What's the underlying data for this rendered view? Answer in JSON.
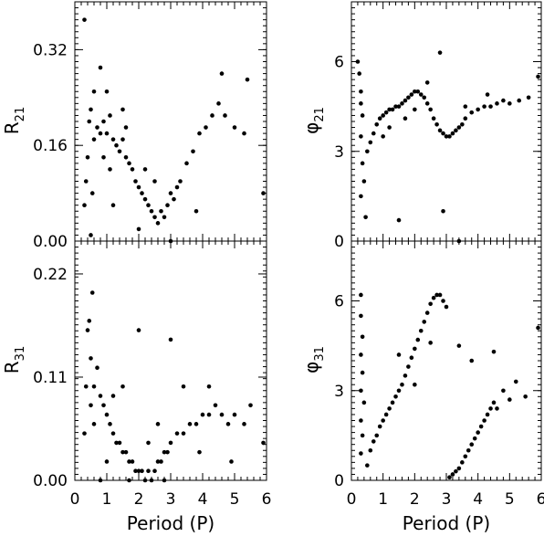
{
  "chart_data": [
    {
      "type": "scatter",
      "id": "r21",
      "ylabel": {
        "main": "R",
        "sub": "21"
      },
      "xlabel": "",
      "xlim": [
        0,
        6
      ],
      "ylim": [
        0,
        0.4
      ],
      "yticks": [
        "0.00",
        "0.16",
        "0.32"
      ],
      "ytick_values": [
        0.0,
        0.16,
        0.32
      ],
      "xticks": [],
      "show_xticklabels": false,
      "series": [
        {
          "values": [
            [
              0.3,
              0.06
            ],
            [
              0.35,
              0.1
            ],
            [
              0.4,
              0.14
            ],
            [
              0.45,
              0.2
            ],
            [
              0.5,
              0.22
            ],
            [
              0.55,
              0.08
            ],
            [
              0.6,
              0.17
            ],
            [
              0.7,
              0.19
            ],
            [
              0.8,
              0.18
            ],
            [
              0.9,
              0.2
            ],
            [
              1.0,
              0.18
            ],
            [
              1.1,
              0.21
            ],
            [
              1.2,
              0.17
            ],
            [
              1.3,
              0.16
            ],
            [
              1.4,
              0.15
            ],
            [
              1.5,
              0.17
            ],
            [
              1.6,
              0.14
            ],
            [
              1.7,
              0.13
            ],
            [
              1.8,
              0.12
            ],
            [
              1.9,
              0.1
            ],
            [
              2.0,
              0.09
            ],
            [
              2.1,
              0.08
            ],
            [
              2.2,
              0.07
            ],
            [
              2.3,
              0.06
            ],
            [
              2.4,
              0.05
            ],
            [
              2.5,
              0.04
            ],
            [
              2.6,
              0.03
            ],
            [
              2.7,
              0.05
            ],
            [
              2.8,
              0.04
            ],
            [
              2.9,
              0.06
            ],
            [
              3.0,
              0.08
            ],
            [
              3.1,
              0.07
            ],
            [
              3.2,
              0.09
            ],
            [
              3.3,
              0.1
            ],
            [
              3.5,
              0.13
            ],
            [
              3.7,
              0.15
            ],
            [
              3.9,
              0.18
            ],
            [
              4.1,
              0.19
            ],
            [
              4.3,
              0.21
            ],
            [
              4.5,
              0.23
            ],
            [
              4.7,
              0.21
            ],
            [
              5.0,
              0.19
            ],
            [
              5.3,
              0.18
            ],
            [
              0.3,
              0.37
            ],
            [
              0.8,
              0.29
            ],
            [
              1.0,
              0.25
            ],
            [
              1.5,
              0.22
            ],
            [
              2.2,
              0.12
            ],
            [
              4.6,
              0.28
            ],
            [
              5.4,
              0.27
            ],
            [
              0.5,
              0.01
            ],
            [
              1.2,
              0.06
            ],
            [
              2.0,
              0.02
            ],
            [
              3.0,
              0.0
            ],
            [
              0.6,
              0.25
            ],
            [
              0.9,
              0.14
            ],
            [
              1.1,
              0.12
            ],
            [
              1.6,
              0.19
            ],
            [
              2.5,
              0.1
            ],
            [
              3.8,
              0.05
            ],
            [
              5.9,
              0.08
            ]
          ]
        }
      ]
    },
    {
      "type": "scatter",
      "id": "phi21",
      "ylabel": {
        "main": "φ",
        "sub": "21"
      },
      "xlabel": "",
      "xlim": [
        0,
        6
      ],
      "ylim": [
        0,
        8
      ],
      "yticks": [
        "0",
        "3",
        "6"
      ],
      "ytick_values": [
        0,
        3,
        6
      ],
      "xticks": [],
      "show_xticklabels": false,
      "series": [
        {
          "values": [
            [
              0.2,
              6.0
            ],
            [
              0.25,
              5.6
            ],
            [
              0.3,
              5.0
            ],
            [
              0.3,
              4.6
            ],
            [
              0.35,
              4.2
            ],
            [
              0.3,
              3.5
            ],
            [
              0.35,
              2.6
            ],
            [
              0.4,
              2.0
            ],
            [
              0.3,
              1.5
            ],
            [
              0.45,
              0.8
            ],
            [
              0.5,
              3.0
            ],
            [
              0.6,
              3.3
            ],
            [
              0.7,
              3.6
            ],
            [
              0.8,
              3.9
            ],
            [
              0.9,
              4.1
            ],
            [
              1.0,
              4.2
            ],
            [
              1.1,
              4.3
            ],
            [
              1.2,
              4.4
            ],
            [
              1.3,
              4.4
            ],
            [
              1.4,
              4.5
            ],
            [
              1.5,
              4.5
            ],
            [
              1.6,
              4.6
            ],
            [
              1.7,
              4.7
            ],
            [
              1.8,
              4.8
            ],
            [
              1.9,
              4.9
            ],
            [
              2.0,
              5.0
            ],
            [
              2.1,
              5.0
            ],
            [
              2.2,
              4.9
            ],
            [
              2.3,
              4.8
            ],
            [
              2.4,
              4.6
            ],
            [
              2.5,
              4.4
            ],
            [
              2.6,
              4.1
            ],
            [
              2.7,
              3.9
            ],
            [
              2.8,
              3.7
            ],
            [
              2.9,
              3.6
            ],
            [
              3.0,
              3.5
            ],
            [
              3.1,
              3.5
            ],
            [
              3.2,
              3.6
            ],
            [
              3.3,
              3.7
            ],
            [
              3.4,
              3.8
            ],
            [
              3.5,
              3.9
            ],
            [
              3.6,
              4.1
            ],
            [
              3.8,
              4.3
            ],
            [
              4.0,
              4.4
            ],
            [
              4.2,
              4.5
            ],
            [
              4.4,
              4.5
            ],
            [
              4.6,
              4.6
            ],
            [
              4.8,
              4.7
            ],
            [
              5.0,
              4.6
            ],
            [
              5.3,
              4.7
            ],
            [
              5.6,
              4.8
            ],
            [
              5.9,
              5.5
            ],
            [
              2.8,
              6.3
            ],
            [
              1.5,
              0.7
            ],
            [
              2.9,
              1.0
            ],
            [
              3.4,
              0.0
            ],
            [
              1.0,
              3.5
            ],
            [
              1.2,
              3.8
            ],
            [
              2.4,
              5.3
            ],
            [
              2.0,
              4.4
            ],
            [
              1.7,
              4.1
            ],
            [
              3.6,
              4.5
            ],
            [
              4.3,
              4.9
            ]
          ]
        }
      ]
    },
    {
      "type": "scatter",
      "id": "r31",
      "ylabel": {
        "main": "R",
        "sub": "31"
      },
      "xlabel": "Period (P)",
      "xlim": [
        0,
        6
      ],
      "ylim": [
        0,
        0.255
      ],
      "yticks": [
        "0.00",
        "0.11",
        "0.22"
      ],
      "ytick_values": [
        0.0,
        0.11,
        0.22
      ],
      "xticks": [
        "0",
        "1",
        "2",
        "3",
        "4",
        "5",
        "6"
      ],
      "xtick_values": [
        0,
        1,
        2,
        3,
        4,
        5,
        6
      ],
      "show_xticklabels": true,
      "series": [
        {
          "values": [
            [
              0.3,
              0.05
            ],
            [
              0.35,
              0.1
            ],
            [
              0.4,
              0.16
            ],
            [
              0.45,
              0.17
            ],
            [
              0.5,
              0.13
            ],
            [
              0.5,
              0.08
            ],
            [
              0.55,
              0.2
            ],
            [
              0.6,
              0.1
            ],
            [
              0.7,
              0.12
            ],
            [
              0.8,
              0.09
            ],
            [
              0.9,
              0.08
            ],
            [
              1.0,
              0.07
            ],
            [
              1.1,
              0.06
            ],
            [
              1.2,
              0.05
            ],
            [
              1.3,
              0.04
            ],
            [
              1.4,
              0.04
            ],
            [
              1.5,
              0.03
            ],
            [
              1.6,
              0.03
            ],
            [
              1.7,
              0.02
            ],
            [
              1.8,
              0.02
            ],
            [
              1.9,
              0.01
            ],
            [
              2.0,
              0.01
            ],
            [
              2.1,
              0.01
            ],
            [
              2.2,
              0.0
            ],
            [
              2.3,
              0.01
            ],
            [
              2.4,
              0.0
            ],
            [
              2.5,
              0.01
            ],
            [
              2.6,
              0.02
            ],
            [
              2.7,
              0.02
            ],
            [
              2.8,
              0.03
            ],
            [
              2.9,
              0.03
            ],
            [
              3.0,
              0.04
            ],
            [
              3.2,
              0.05
            ],
            [
              3.4,
              0.05
            ],
            [
              3.6,
              0.06
            ],
            [
              3.8,
              0.06
            ],
            [
              4.0,
              0.07
            ],
            [
              4.2,
              0.07
            ],
            [
              4.4,
              0.08
            ],
            [
              4.6,
              0.07
            ],
            [
              4.8,
              0.06
            ],
            [
              5.0,
              0.07
            ],
            [
              5.3,
              0.06
            ],
            [
              5.9,
              0.04
            ],
            [
              2.0,
              0.16
            ],
            [
              3.0,
              0.15
            ],
            [
              1.5,
              0.1
            ],
            [
              3.4,
              0.1
            ],
            [
              4.2,
              0.1
            ],
            [
              2.6,
              0.06
            ],
            [
              1.0,
              0.02
            ],
            [
              0.8,
              0.0
            ],
            [
              1.7,
              0.0
            ],
            [
              2.8,
              0.0
            ],
            [
              4.9,
              0.02
            ],
            [
              3.9,
              0.03
            ],
            [
              2.3,
              0.04
            ],
            [
              1.2,
              0.09
            ],
            [
              0.6,
              0.06
            ],
            [
              5.5,
              0.08
            ]
          ]
        }
      ]
    },
    {
      "type": "scatter",
      "id": "phi31",
      "ylabel": {
        "main": "φ",
        "sub": "31"
      },
      "xlabel": "Period (P)",
      "xlim": [
        0,
        6
      ],
      "ylim": [
        0,
        8
      ],
      "yticks": [
        "0",
        "3",
        "6"
      ],
      "ytick_values": [
        0,
        3,
        6
      ],
      "xticks": [
        "0",
        "1",
        "2",
        "3",
        "4",
        "5",
        "6"
      ],
      "xtick_values": [
        0,
        1,
        2,
        3,
        4,
        5,
        6
      ],
      "show_xticklabels": true,
      "series": [
        {
          "values": [
            [
              0.3,
              6.2
            ],
            [
              0.3,
              5.5
            ],
            [
              0.35,
              4.8
            ],
            [
              0.3,
              4.2
            ],
            [
              0.35,
              3.6
            ],
            [
              0.3,
              3.0
            ],
            [
              0.4,
              2.6
            ],
            [
              0.3,
              2.0
            ],
            [
              0.35,
              1.5
            ],
            [
              0.3,
              0.9
            ],
            [
              0.5,
              0.5
            ],
            [
              0.6,
              1.0
            ],
            [
              0.7,
              1.3
            ],
            [
              0.8,
              1.5
            ],
            [
              0.9,
              1.8
            ],
            [
              1.0,
              2.0
            ],
            [
              1.1,
              2.2
            ],
            [
              1.2,
              2.4
            ],
            [
              1.3,
              2.6
            ],
            [
              1.4,
              2.8
            ],
            [
              1.5,
              3.0
            ],
            [
              1.6,
              3.2
            ],
            [
              1.7,
              3.5
            ],
            [
              1.8,
              3.8
            ],
            [
              1.9,
              4.1
            ],
            [
              2.0,
              4.4
            ],
            [
              2.1,
              4.7
            ],
            [
              2.2,
              5.0
            ],
            [
              2.3,
              5.3
            ],
            [
              2.4,
              5.6
            ],
            [
              2.5,
              5.9
            ],
            [
              2.6,
              6.1
            ],
            [
              2.7,
              6.2
            ],
            [
              2.8,
              6.2
            ],
            [
              2.9,
              6.0
            ],
            [
              3.0,
              5.8
            ],
            [
              3.1,
              0.1
            ],
            [
              3.2,
              0.2
            ],
            [
              3.3,
              0.3
            ],
            [
              3.4,
              0.4
            ],
            [
              3.5,
              0.6
            ],
            [
              3.6,
              0.8
            ],
            [
              3.7,
              1.0
            ],
            [
              3.8,
              1.2
            ],
            [
              3.9,
              1.4
            ],
            [
              4.0,
              1.6
            ],
            [
              4.1,
              1.8
            ],
            [
              4.2,
              2.0
            ],
            [
              4.3,
              2.2
            ],
            [
              4.4,
              2.4
            ],
            [
              4.5,
              2.6
            ],
            [
              4.6,
              2.4
            ],
            [
              4.8,
              3.0
            ],
            [
              5.0,
              2.7
            ],
            [
              5.2,
              3.3
            ],
            [
              5.5,
              2.8
            ],
            [
              5.9,
              5.1
            ],
            [
              3.4,
              4.5
            ],
            [
              3.8,
              4.0
            ],
            [
              4.5,
              4.3
            ],
            [
              2.0,
              3.2
            ],
            [
              1.5,
              4.2
            ],
            [
              2.5,
              4.6
            ]
          ]
        }
      ]
    }
  ]
}
